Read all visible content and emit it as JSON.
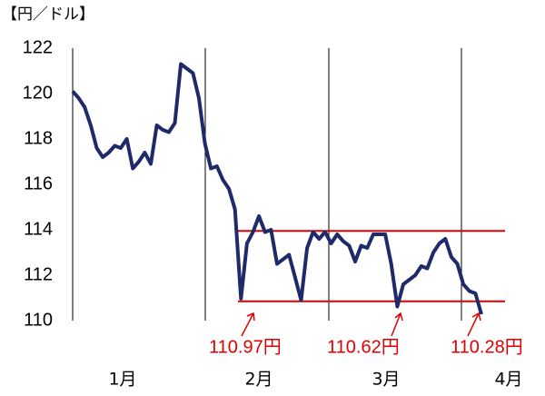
{
  "chart_data": {
    "type": "line",
    "y_label": "【円／ドル】",
    "series": [
      {
        "color": "#1f2a6b",
        "values": [
          120.1,
          119.8,
          119.4,
          118.6,
          117.6,
          117.2,
          117.4,
          117.7,
          117.6,
          118.0,
          116.7,
          117.0,
          117.4,
          116.9,
          118.6,
          118.4,
          118.3,
          118.7,
          121.3,
          121.1,
          120.9,
          119.8,
          117.8,
          116.7,
          116.8,
          116.2,
          115.8,
          114.9,
          110.97,
          113.4,
          113.9,
          114.6,
          113.9,
          114.0,
          112.5,
          112.7,
          112.9,
          111.9,
          110.9,
          113.2,
          113.9,
          113.6,
          113.9,
          113.4,
          113.8,
          113.5,
          113.3,
          112.6,
          113.3,
          113.2,
          113.8,
          113.8,
          113.8,
          112.5,
          110.62,
          111.6,
          111.8,
          112.0,
          112.4,
          112.3,
          113.0,
          113.4,
          113.6,
          112.8,
          112.5,
          111.6,
          111.3,
          111.2,
          110.28
        ]
      }
    ],
    "x_group_labels": [
      "1月",
      "2月",
      "3月",
      "4月"
    ],
    "ylim": [
      110,
      122
    ],
    "yticks": [
      110,
      112,
      114,
      116,
      118,
      120,
      122
    ],
    "reference_lines": [
      {
        "value": 113.95,
        "color": "#e00000"
      },
      {
        "value": 110.85,
        "color": "#e00000"
      }
    ],
    "annotations": [
      {
        "text": "110.97円"
      },
      {
        "text": "110.62円"
      },
      {
        "text": "110.28円"
      }
    ]
  }
}
